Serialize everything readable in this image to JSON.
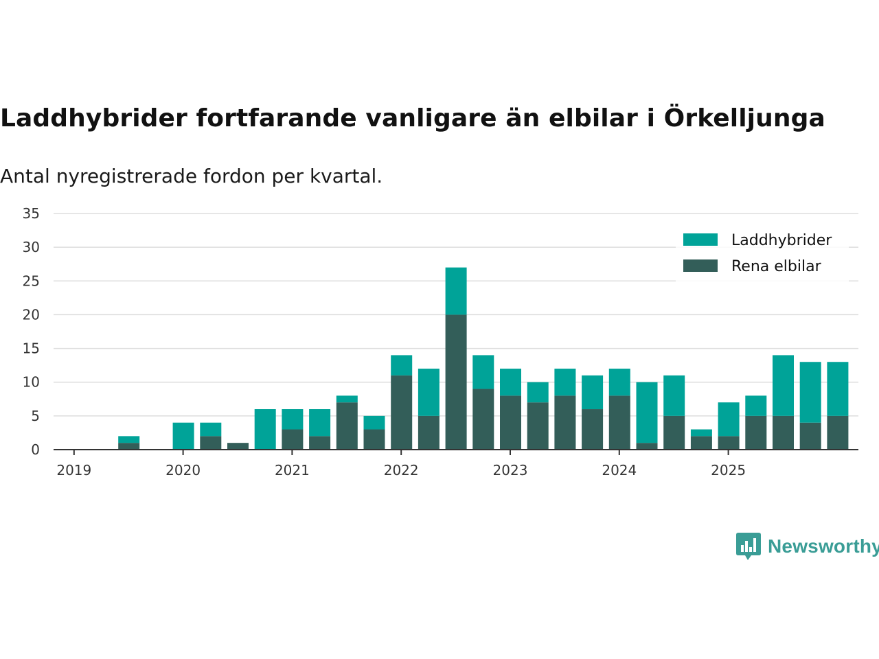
{
  "header": {
    "title": "Laddhybrider fortfarande vanligare än elbilar i Örkelljunga",
    "subtitle": "Antal nyregistrerade fordon per kvartal."
  },
  "brand": {
    "name": "Newsworthy"
  },
  "colors": {
    "hybrid": "#00a398",
    "electric": "#335e59",
    "grid": "#dddddd",
    "axis": "#333333"
  },
  "chart_data": {
    "type": "bar",
    "stacked": true,
    "title": "Laddhybrider fortfarande vanligare än elbilar i Örkelljunga",
    "subtitle": "Antal nyregistrerade fordon per kvartal.",
    "xlabel": "",
    "ylabel": "",
    "ylim": [
      0,
      35
    ],
    "yticks": [
      0,
      5,
      10,
      15,
      20,
      25,
      30,
      35
    ],
    "x_tick_labels": [
      "2019",
      "2020",
      "2021",
      "2022",
      "2023",
      "2024",
      "2025"
    ],
    "categories": [
      "2019 Q1",
      "2019 Q2",
      "2019 Q3",
      "2019 Q4",
      "2020 Q1",
      "2020 Q2",
      "2020 Q3",
      "2020 Q4",
      "2021 Q1",
      "2021 Q2",
      "2021 Q3",
      "2021 Q4",
      "2022 Q1",
      "2022 Q2",
      "2022 Q3",
      "2022 Q4",
      "2023 Q1",
      "2023 Q2",
      "2023 Q3",
      "2023 Q4",
      "2024 Q1",
      "2024 Q2",
      "2024 Q3",
      "2024 Q4",
      "2025 Q1",
      "2025 Q2",
      "2025 Q3",
      "2025 Q4"
    ],
    "legend_position": "top-right",
    "series": [
      {
        "name": "Rena elbilar",
        "values": [
          0,
          1,
          0,
          0,
          2,
          1,
          0,
          3,
          2,
          7,
          3,
          11,
          5,
          20,
          9,
          8,
          7,
          8,
          6,
          8,
          1,
          5,
          2,
          2,
          5,
          5,
          4,
          5
        ]
      },
      {
        "name": "Laddhybrider",
        "values": [
          0,
          1,
          0,
          4,
          2,
          0,
          6,
          3,
          4,
          1,
          2,
          3,
          7,
          7,
          5,
          4,
          3,
          4,
          5,
          4,
          9,
          6,
          1,
          5,
          3,
          9,
          9,
          8
        ]
      }
    ],
    "legend": [
      "Laddhybrider",
      "Rena elbilar"
    ]
  }
}
